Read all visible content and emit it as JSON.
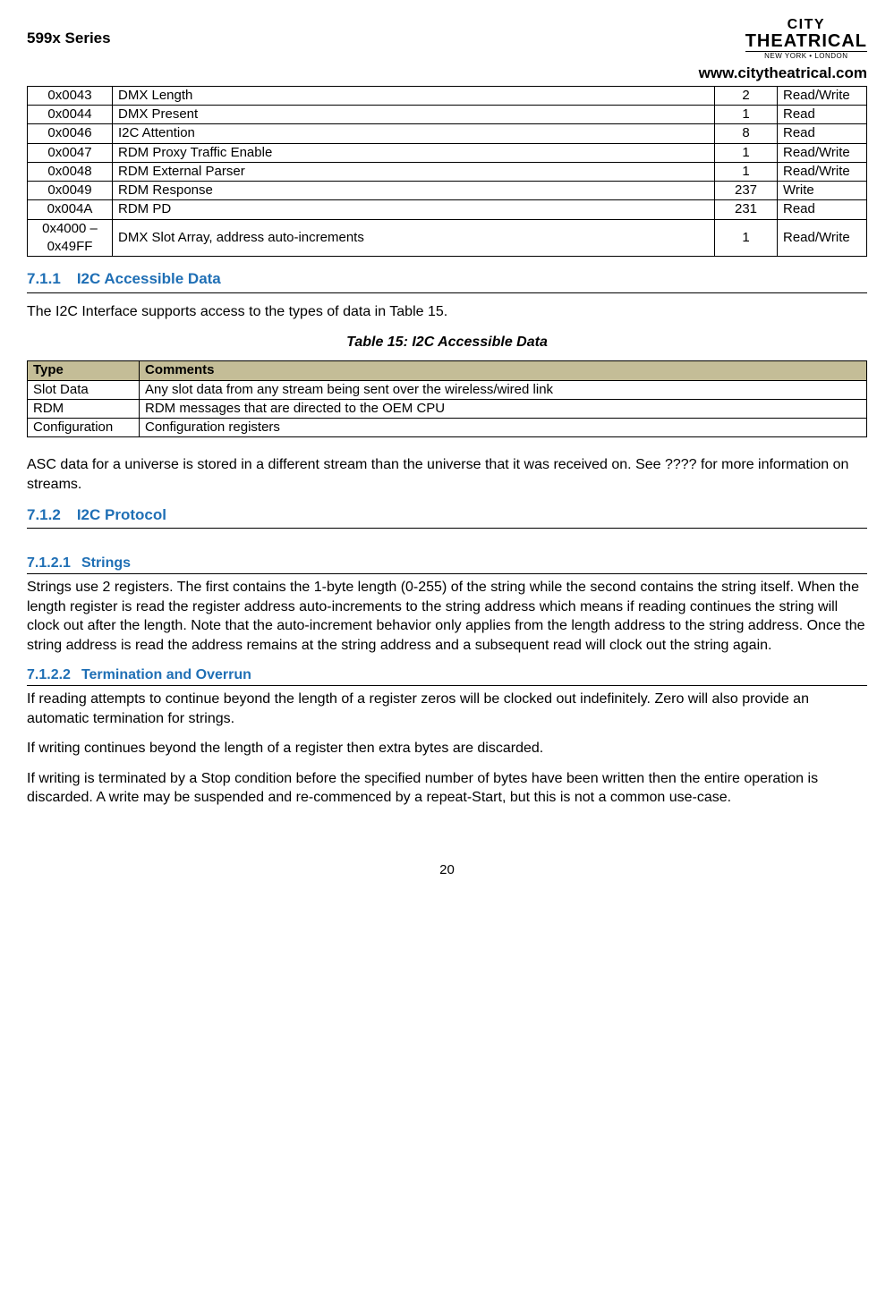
{
  "header": {
    "series": "599x Series",
    "url": "www.citytheatrical.com",
    "logo_top": "CITY",
    "logo_main": "THEATRICAL",
    "logo_sub": "NEW YORK • LONDON"
  },
  "reg_table": {
    "rows": [
      [
        "0x0043",
        "DMX Length",
        "2",
        "Read/Write"
      ],
      [
        "0x0044",
        "DMX Present",
        "1",
        "Read"
      ],
      [
        "0x0046",
        "I2C Attention",
        "8",
        "Read"
      ],
      [
        "0x0047",
        "RDM Proxy Traffic Enable",
        "1",
        "Read/Write"
      ],
      [
        "0x0048",
        "RDM External Parser",
        "1",
        "Read/Write"
      ],
      [
        "0x0049",
        "RDM Response",
        "237",
        "Write"
      ],
      [
        "0x004A",
        "RDM PD",
        "231",
        "Read"
      ],
      [
        "0x4000 – 0x49FF",
        "DMX Slot Array, address auto-increments",
        "1",
        "Read/Write"
      ]
    ]
  },
  "sections": {
    "s711_num": "7.1.1",
    "s711_title": "I2C Accessible Data",
    "s711_intro": "The I2C Interface supports access to the types of data in Table 15.",
    "table15_caption": "Table 15: I2C Accessible Data",
    "table15_h1": "Type",
    "table15_h2": "Comments",
    "table15_rows": [
      [
        "Slot Data",
        "Any slot data from any stream being sent over the wireless/wired link"
      ],
      [
        "RDM",
        "RDM messages that are directed to the OEM CPU"
      ],
      [
        "Configuration",
        "Configuration registers"
      ]
    ],
    "asc_para": "ASC data for a universe is stored in a different stream than the universe that it was received on. See ???? for more information on streams.",
    "s712_num": "7.1.2",
    "s712_title": "I2C Protocol",
    "s7121_num": "7.1.2.1",
    "s7121_title": "Strings",
    "s7121_para": "Strings use 2 registers.  The first contains the 1-byte length (0-255) of the string while the second contains the string itself.  When the length register is read the register address auto-increments to the string address which means if reading continues the string will clock out after the length.  Note that the auto-increment behavior only applies from the length address to the string address.  Once the string address is read the address remains at the string address and a subsequent read will clock out the string again.",
    "s7122_num": "7.1.2.2",
    "s7122_title": "Termination and Overrun",
    "s7122_p1": "If reading attempts to continue beyond the length of a register zeros will be clocked out indefinitely.  Zero will also provide an automatic termination for strings.",
    "s7122_p2": "If writing continues beyond the length of a register then extra bytes are discarded.",
    "s7122_p3": "If writing is terminated by a Stop condition before the specified number of bytes have been written then the entire operation is discarded.  A write may be suspended and re-commenced by a repeat-Start, but this is not a common use-case."
  },
  "page_number": "20"
}
